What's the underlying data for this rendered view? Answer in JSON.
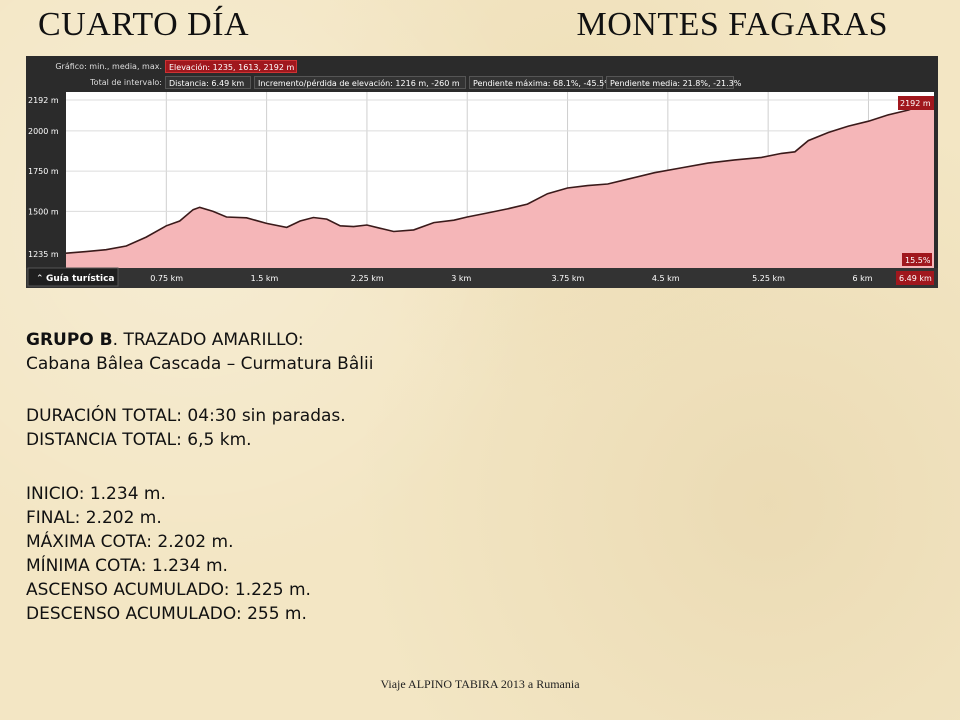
{
  "title_left": "CUARTO DÍA",
  "title_right": "MONTES FAGARAS",
  "profile": {
    "header": {
      "graph_label": "Gráfico: min., media, max.",
      "elevation": "Elevación: 1235, 1613, 2192 m",
      "interval_label": "Total de intervalo:",
      "distance": "Distancia: 6.49 km",
      "gain_loss": "Incremento/pérdida de elevación: 1216 m, -260 m",
      "max_slope": "Pendiente máxima: 68.1%, -45.5%",
      "avg_slope": "Pendiente media: 21.8%, -21.3%"
    },
    "y_ticks": [
      "2192 m",
      "2000 m",
      "1750 m",
      "1500 m",
      "1235 m"
    ],
    "x_ticks": [
      "0.75 km",
      "1.5 km",
      "2.25 km",
      "3 km",
      "3.75 km",
      "4.5 km",
      "5.25 km",
      "6 km"
    ],
    "end_elevation": "2192 m",
    "end_slope": "15.5%",
    "end_distance": "6.49 km",
    "guide_label": "Guía turística",
    "elevation_profile": {
      "type": "area",
      "x": [
        0,
        0.15,
        0.3,
        0.45,
        0.6,
        0.75,
        0.85,
        0.95,
        1.0,
        1.1,
        1.2,
        1.35,
        1.5,
        1.65,
        1.75,
        1.85,
        1.95,
        2.05,
        2.15,
        2.25,
        2.35,
        2.45,
        2.6,
        2.75,
        2.9,
        3.0,
        3.15,
        3.3,
        3.45,
        3.6,
        3.75,
        3.9,
        4.05,
        4.2,
        4.4,
        4.6,
        4.8,
        5.0,
        5.2,
        5.35,
        5.45,
        5.55,
        5.7,
        5.85,
        6.0,
        6.15,
        6.3,
        6.49
      ],
      "y": [
        1240,
        1250,
        1262,
        1285,
        1340,
        1410,
        1440,
        1510,
        1525,
        1500,
        1465,
        1460,
        1425,
        1400,
        1440,
        1462,
        1452,
        1410,
        1405,
        1415,
        1395,
        1375,
        1385,
        1430,
        1445,
        1465,
        1490,
        1515,
        1545,
        1610,
        1645,
        1660,
        1670,
        1700,
        1740,
        1770,
        1800,
        1820,
        1835,
        1860,
        1870,
        1940,
        1990,
        2030,
        2060,
        2100,
        2130,
        2192
      ],
      "ylim": [
        1235,
        2192
      ],
      "xlim": [
        0,
        6.49
      ],
      "fill_color": "#f5b6b8",
      "line_color": "#3a1a1a"
    }
  },
  "group": {
    "bold": "GRUPO B",
    "rest": ". TRAZADO AMARILLO:"
  },
  "route": "Cabana Bâlea Cascada – Curmatura Bâlii",
  "duration": "DURACIÓN TOTAL: 04:30 sin paradas.",
  "distance": "DISTANCIA TOTAL: 6,5 km.",
  "stats": [
    "INICIO: 1.234 m.",
    "FINAL: 2.202 m.",
    "MÁXIMA COTA: 2.202 m.",
    "MÍNIMA COTA: 1.234 m.",
    "ASCENSO ACUMULADO: 1.225 m.",
    "DESCENSO ACUMULADO:  255 m."
  ],
  "footer": "Viaje ALPINO TABIRA 2013 a Rumania"
}
